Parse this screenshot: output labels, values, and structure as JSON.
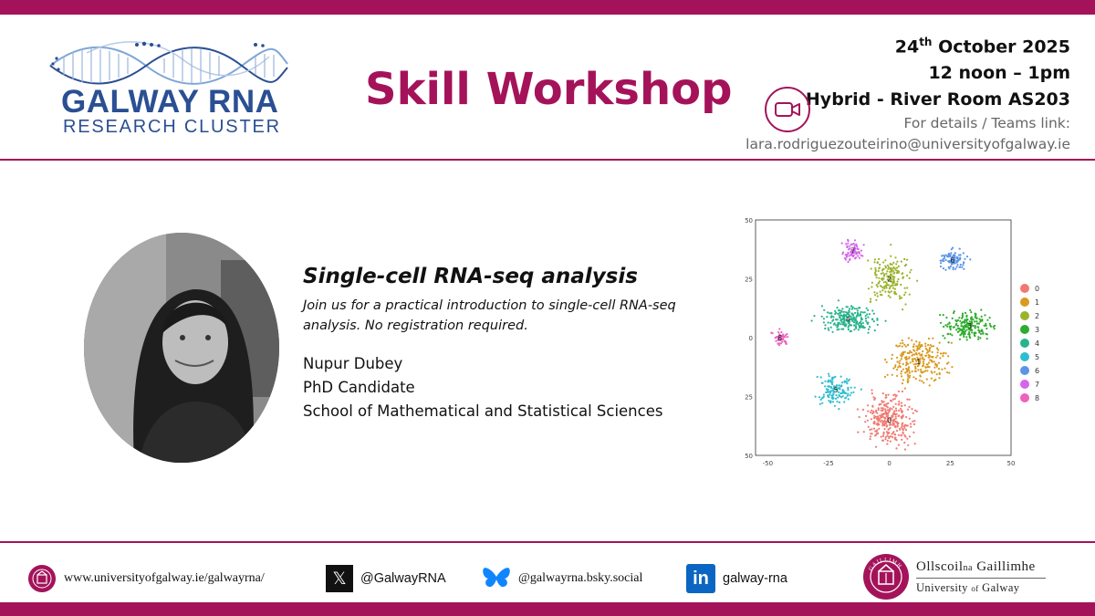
{
  "colors": {
    "brand": "#a4135a",
    "logo_blue": "#2a4f93",
    "linkedin": "#0a66c2"
  },
  "logo": {
    "title": "GALWAY RNA",
    "subtitle": "RESEARCH CLUSTER"
  },
  "headline": "Skill Workshop",
  "event": {
    "date_day": "24",
    "date_suffix": "th",
    "date_rest": " October 2025",
    "time": "12 noon – 1pm",
    "venue": "Hybrid - River Room AS203",
    "link_label": "For details / Teams link:",
    "email": "lara.rodriguezouteirino@universityofgalway.ie",
    "icon": "video-camera-icon"
  },
  "talk": {
    "title": "Single-cell RNA-seq analysis",
    "description": "Join us for a practical introduction to single-cell RNA-seq analysis. No registration required."
  },
  "speaker": {
    "name": "Nupur Dubey",
    "role": "PhD Candidate",
    "school": "School of Mathematical and Statistical Sciences"
  },
  "chart_data": {
    "type": "scatter",
    "x_ticks": [
      "-50",
      "-25",
      "0",
      "25",
      "50"
    ],
    "y_ticks": [
      "50",
      "25",
      "0",
      "25",
      "50"
    ],
    "xlim": [
      -55,
      50
    ],
    "ylim": [
      -50,
      50
    ],
    "grid": false,
    "legend_position": "right",
    "series": [
      {
        "name": "0",
        "color": "#f07a72",
        "center": [
          0,
          -35
        ],
        "spread": [
          9,
          9
        ],
        "count": 300
      },
      {
        "name": "1",
        "color": "#d99a1f",
        "center": [
          12,
          -10
        ],
        "spread": [
          10,
          9
        ],
        "count": 250
      },
      {
        "name": "2",
        "color": "#9bb32c",
        "center": [
          0,
          25
        ],
        "spread": [
          8,
          9
        ],
        "count": 180
      },
      {
        "name": "3",
        "color": "#2fac2f",
        "center": [
          33,
          5
        ],
        "spread": [
          9,
          5
        ],
        "count": 200
      },
      {
        "name": "4",
        "color": "#28b38d",
        "center": [
          -17,
          8
        ],
        "spread": [
          10,
          5
        ],
        "count": 220
      },
      {
        "name": "5",
        "color": "#2fbdd0",
        "center": [
          -22,
          -22
        ],
        "spread": [
          7,
          6
        ],
        "count": 130
      },
      {
        "name": "6",
        "color": "#5c94e8",
        "center": [
          26,
          33
        ],
        "spread": [
          5,
          4
        ],
        "count": 90
      },
      {
        "name": "7",
        "color": "#d565ea",
        "center": [
          -15,
          37
        ],
        "spread": [
          4,
          4
        ],
        "count": 70
      },
      {
        "name": "8",
        "color": "#ec62bd",
        "center": [
          -45,
          0
        ],
        "spread": [
          3,
          3
        ],
        "count": 45
      }
    ]
  },
  "footer": {
    "website": "www.universityofgalway.ie/galwayrna/",
    "x_handle": "@GalwayRNA",
    "bluesky": "@galwayrna.bsky.social",
    "linkedin": "galway-rna",
    "linkedin_glyph": "in",
    "x_glyph": "𝕏",
    "univ_ga_1": "Ollscoil",
    "univ_ga_2": "na",
    "univ_ga_3": "Gaillimhe",
    "univ_en_1": "University",
    "univ_en_2": "of",
    "univ_en_3": "Galway",
    "seal_text": "GAILLIMH"
  }
}
